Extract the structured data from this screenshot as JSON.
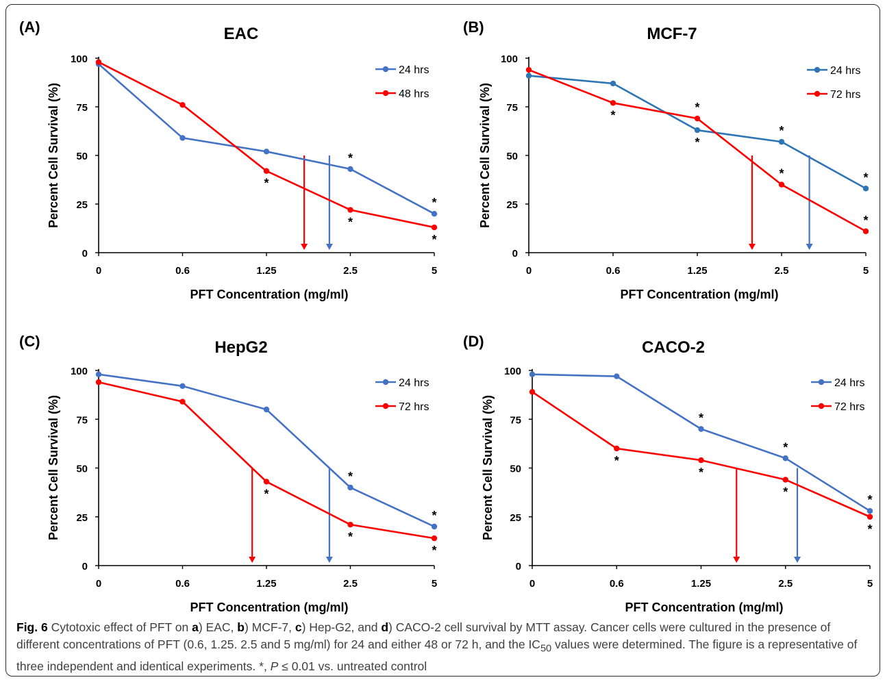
{
  "figure": {
    "caption": {
      "label": "Fig. 6",
      "part1": " Cytotoxic effect of PFT on ",
      "a_letter": "a",
      "part2": ") EAC, ",
      "b_letter": "b",
      "part3": ") MCF-7, ",
      "c_letter": "c",
      "part4": ") Hep-G2, and ",
      "d_letter": "d",
      "part5": ") CACO-2 cell survival by MTT assay. Cancer cells were cultured in the presence of different concentrations of PFT (0.6, 1.25. 2.5 and 5 mg/ml) for 24 and either 48 or 72 h, and the IC",
      "ic_sub": "50",
      "part6": " values were determined. The figure is a representative of three independent and identical experiments. *, ",
      "p_letter": "P",
      "part7": " ≤ 0.01 vs. untreated control"
    }
  },
  "colors": {
    "blue": "#4472C4",
    "teal_blue": "#2E75B6",
    "red": "#FF0000"
  },
  "chart_data": [
    {
      "type": "line",
      "panel_label": "(A)",
      "title": "EAC",
      "xlabel": "PFT Concentration (mg/ml)",
      "ylabel": "Percent Cell Survival (%)",
      "categories": [
        "0",
        "0.6",
        "1.25",
        "2.5",
        "5"
      ],
      "ylim": [
        0,
        100
      ],
      "yticks": [
        "0",
        "25",
        "50",
        "75",
        "100"
      ],
      "legend_position": "top-right",
      "series": [
        {
          "name": "24 hrs",
          "color": "#4472C4",
          "values": [
            97,
            59,
            52,
            43,
            20
          ],
          "stars": [
            "",
            "",
            "",
            "*",
            "*"
          ],
          "star_side": [
            "",
            "",
            "",
            "above",
            "above"
          ]
        },
        {
          "name": "48 hrs",
          "color": "#FF0000",
          "values": [
            98,
            76,
            42,
            22,
            13
          ],
          "stars": [
            "",
            "",
            "*",
            "*",
            "*"
          ],
          "star_side": [
            "",
            "",
            "below",
            "below",
            "below"
          ]
        }
      ],
      "ic50_arrows": [
        {
          "series": "48 hrs",
          "x_index": 2.45,
          "color": "#FF0000"
        },
        {
          "series": "24 hrs",
          "x_index": 2.75,
          "color": "#4472C4"
        }
      ]
    },
    {
      "type": "line",
      "panel_label": "(B)",
      "title": "MCF-7",
      "xlabel": "PFT Concentration (mg/ml)",
      "ylabel": "Percent Cell Survival (%)",
      "categories": [
        "0",
        "0.6",
        "1.25",
        "2.5",
        "5"
      ],
      "ylim": [
        0,
        100
      ],
      "yticks": [
        "0",
        "25",
        "50",
        "75",
        "100"
      ],
      "legend_position": "top-right",
      "series": [
        {
          "name": "24 hrs",
          "color": "#2E75B6",
          "values": [
            91,
            87,
            63,
            57,
            33
          ],
          "stars": [
            "",
            "",
            "*",
            "*",
            "*"
          ],
          "star_side": [
            "",
            "",
            "below",
            "above",
            "above"
          ]
        },
        {
          "name": "72 hrs",
          "color": "#FF0000",
          "values": [
            94,
            77,
            69,
            35,
            11
          ],
          "stars": [
            "",
            "*",
            "*",
            "*",
            "*"
          ],
          "star_side": [
            "",
            "below",
            "above",
            "above",
            "above"
          ]
        }
      ],
      "ic50_arrows": [
        {
          "series": "72 hrs",
          "x_index": 2.65,
          "color": "#FF0000"
        },
        {
          "series": "24 hrs",
          "x_index": 3.33,
          "color": "#4472C4"
        }
      ]
    },
    {
      "type": "line",
      "panel_label": "(C)",
      "title": "HepG2",
      "xlabel": "PFT Concentration (mg/ml)",
      "ylabel": "Percent Cell Survival (%)",
      "categories": [
        "0",
        "0.6",
        "1.25",
        "2.5",
        "5"
      ],
      "ylim": [
        0,
        100
      ],
      "yticks": [
        "0",
        "25",
        "50",
        "75",
        "100"
      ],
      "legend_position": "top-right",
      "series": [
        {
          "name": "24 hrs",
          "color": "#4472C4",
          "values": [
            98,
            92,
            80,
            40,
            20
          ],
          "stars": [
            "",
            "",
            "",
            "*",
            "*"
          ],
          "star_side": [
            "",
            "",
            "",
            "above",
            "above"
          ]
        },
        {
          "name": "72 hrs",
          "color": "#FF0000",
          "values": [
            94,
            84,
            43,
            21,
            14
          ],
          "stars": [
            "",
            "",
            "*",
            "*",
            "*"
          ],
          "star_side": [
            "",
            "",
            "below",
            "below",
            "below"
          ]
        }
      ],
      "ic50_arrows": [
        {
          "series": "72 hrs",
          "x_index": 1.83,
          "color": "#FF0000"
        },
        {
          "series": "24 hrs",
          "x_index": 2.75,
          "color": "#4472C4"
        }
      ]
    },
    {
      "type": "line",
      "panel_label": "(D)",
      "title": "CACO-2",
      "xlabel": "PFT Concentration (mg/ml)",
      "ylabel": "Percent Cell Survival (%)",
      "categories": [
        "0",
        "0.6",
        "1.25",
        "2.5",
        "5"
      ],
      "ylim": [
        0,
        100
      ],
      "yticks": [
        "0",
        "25",
        "50",
        "75",
        "100"
      ],
      "legend_position": "top-right",
      "series": [
        {
          "name": "24 hrs",
          "color": "#4472C4",
          "values": [
            98,
            97,
            70,
            55,
            28
          ],
          "stars": [
            "",
            "",
            "*",
            "*",
            "*"
          ],
          "star_side": [
            "",
            "",
            "above",
            "above",
            "above"
          ]
        },
        {
          "name": "72 hrs",
          "color": "#FF0000",
          "values": [
            89,
            60,
            54,
            44,
            25
          ],
          "stars": [
            "",
            "*",
            "*",
            "*",
            "*"
          ],
          "star_side": [
            "",
            "below",
            "below",
            "below",
            "below"
          ]
        }
      ],
      "ic50_arrows": [
        {
          "series": "72 hrs",
          "x_index": 2.42,
          "color": "#FF0000"
        },
        {
          "series": "24 hrs",
          "x_index": 3.14,
          "color": "#4472C4"
        }
      ]
    }
  ]
}
